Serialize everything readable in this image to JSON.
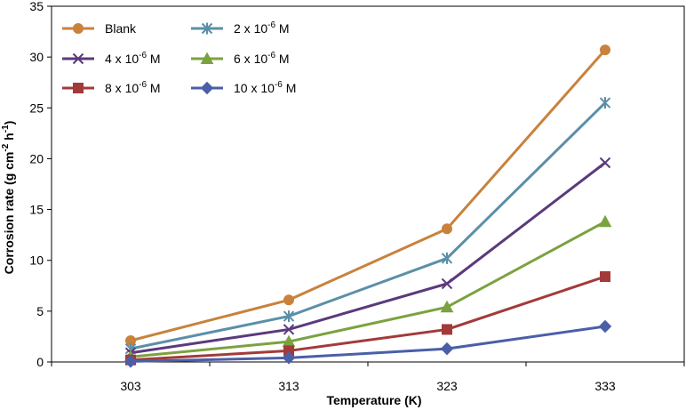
{
  "chart_data": {
    "type": "line",
    "title": "",
    "xlabel": "Temperature (K)",
    "ylabel_main": "Corrosion rate (g cm",
    "ylabel_exp1": "-2",
    "ylabel_mid": " h",
    "ylabel_exp2": "-1",
    "ylabel_end": ")",
    "ylabel": "Corrosion rate (g cm-2 h-1)",
    "categories": [
      "303",
      "313",
      "323",
      "333"
    ],
    "ylim": [
      0,
      35
    ],
    "yticks": [
      "0",
      "5",
      "10",
      "15",
      "20",
      "25",
      "30",
      "35"
    ],
    "yticks_values": [
      0,
      5,
      10,
      15,
      20,
      25,
      30,
      35
    ],
    "grid": false,
    "legend_position": "top-left",
    "series": [
      {
        "name": "Blank",
        "label_base": "Blank",
        "label_exp": "",
        "label_suffix": "",
        "color": "#C8823C",
        "marker": "circle",
        "values": [
          2.1,
          6.1,
          13.1,
          30.7
        ]
      },
      {
        "name": "2 x 10-6 M",
        "label_base": "2 x 10",
        "label_exp": "-6",
        "label_suffix": " M",
        "color": "#5B8FA8",
        "marker": "asterisk",
        "values": [
          1.3,
          4.5,
          10.2,
          25.5
        ]
      },
      {
        "name": "4 x 10-6 M",
        "label_base": "4 x 10",
        "label_exp": "-6",
        "label_suffix": " M",
        "color": "#5A3A7C",
        "marker": "x",
        "values": [
          0.9,
          3.2,
          7.7,
          19.6
        ]
      },
      {
        "name": "6 x 10-6 M",
        "label_base": "6 x 10",
        "label_exp": "-6",
        "label_suffix": " M",
        "color": "#7BA23F",
        "marker": "triangle",
        "values": [
          0.5,
          2.0,
          5.4,
          13.8
        ]
      },
      {
        "name": "8 x 10-6 M",
        "label_base": "8 x 10",
        "label_exp": "-6",
        "label_suffix": " M",
        "color": "#A33A3A",
        "marker": "square",
        "values": [
          0.2,
          1.1,
          3.2,
          8.4
        ]
      },
      {
        "name": "10 x 10-6 M",
        "label_base": "10 x 10",
        "label_exp": "-6",
        "label_suffix": " M",
        "color": "#4A5FA8",
        "marker": "diamond",
        "values": [
          0.05,
          0.4,
          1.3,
          3.5
        ]
      }
    ]
  }
}
